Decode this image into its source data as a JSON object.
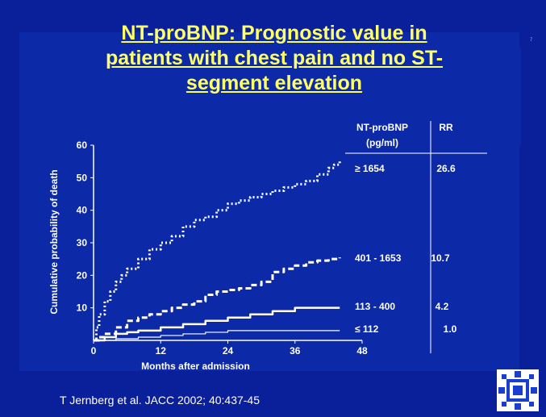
{
  "slide": {
    "title_lines": [
      "NT-proBNP: Prognostic value in",
      "patients with chest pain and no ST-",
      "segment elevation"
    ],
    "citation": "T Jernberg et al. JACC 2002; 40:437-45",
    "page_mark": "7",
    "colors": {
      "background": "#0a1f9a",
      "title": "#ffff66",
      "text": "#ffffff",
      "logo_blue": "#1a3fd0"
    }
  },
  "chart_data": {
    "type": "line",
    "title": "",
    "xlabel": "Months after admission",
    "ylabel": "Cumulative probability of death",
    "xlim": [
      0,
      48
    ],
    "ylim": [
      0,
      60
    ],
    "xticks": [
      0,
      12,
      24,
      36,
      48
    ],
    "yticks": [
      10,
      20,
      30,
      40,
      50,
      60
    ],
    "grid": false,
    "table": {
      "col1_header_line1": "NT-proBNP",
      "col1_header_line2": "(pg/ml)",
      "col2_header": "RR"
    },
    "series": [
      {
        "name": "≥ 1654",
        "rr": "26.6",
        "style": "dotted",
        "x": [
          0,
          0.5,
          1,
          2,
          3,
          4,
          5,
          6,
          8,
          10,
          12,
          14,
          16,
          18,
          20,
          22,
          24,
          26,
          28,
          30,
          32,
          34,
          36,
          38,
          40,
          42,
          43,
          44
        ],
        "y": [
          0,
          4,
          8,
          12,
          15,
          18,
          20,
          22,
          25,
          28,
          30,
          32,
          35,
          37,
          38,
          40,
          42,
          43,
          44,
          45,
          46,
          47,
          48,
          49,
          51,
          53,
          54,
          55
        ]
      },
      {
        "name": "401 - 1653",
        "rr": "10.7",
        "style": "dashed",
        "x": [
          0,
          1,
          2,
          4,
          6,
          8,
          10,
          12,
          14,
          16,
          18,
          20,
          22,
          24,
          26,
          28,
          30,
          32,
          34,
          36,
          38,
          40,
          42,
          44
        ],
        "y": [
          0,
          1,
          2,
          4,
          6,
          7,
          8,
          9,
          10,
          11,
          12,
          14,
          15,
          15.5,
          16,
          17,
          18,
          21,
          22,
          23,
          24,
          24.5,
          25,
          25.5
        ]
      },
      {
        "name": "113 - 400",
        "rr": "4.2",
        "style": "solid",
        "x": [
          0,
          2,
          4,
          6,
          8,
          12,
          16,
          20,
          24,
          28,
          32,
          36,
          40,
          44
        ],
        "y": [
          0,
          1,
          2,
          2.5,
          3,
          4,
          5,
          6,
          7,
          8,
          9,
          10,
          10,
          10
        ]
      },
      {
        "name": "≤ 112",
        "rr": "1.0",
        "style": "thin",
        "x": [
          0,
          4,
          8,
          12,
          16,
          20,
          24,
          28,
          32,
          36,
          40,
          44
        ],
        "y": [
          0,
          0.5,
          1,
          1.5,
          2,
          2.5,
          3,
          3,
          3,
          3,
          3,
          3
        ]
      }
    ]
  }
}
